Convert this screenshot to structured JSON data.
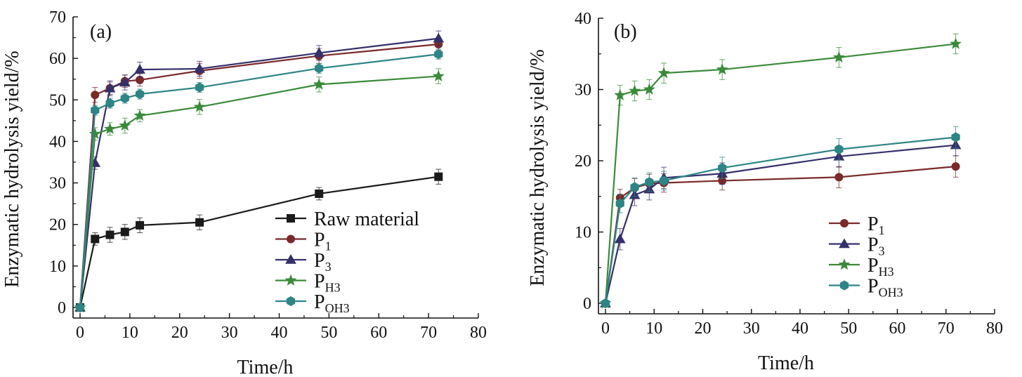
{
  "chart_data": [
    {
      "panel": "(a)",
      "type": "line",
      "xlabel": "Time/h",
      "ylabel": "Enzymatic hydrolysis yield/%",
      "xlim": [
        0,
        80
      ],
      "ylim": [
        0,
        70
      ],
      "xticks": [
        0,
        10,
        20,
        30,
        40,
        50,
        60,
        70,
        80
      ],
      "yticks": [
        0,
        10,
        20,
        30,
        40,
        50,
        60,
        70
      ],
      "grid": false,
      "legend_position": "bottom-right",
      "series": [
        {
          "name": "Raw material",
          "label_main": "Raw material",
          "label_sub": "",
          "marker": "square",
          "color": "#1a1a1a",
          "x": [
            0,
            3,
            6,
            9,
            12,
            24,
            48,
            72
          ],
          "y": [
            0,
            16.5,
            17.5,
            18.2,
            19.8,
            20.5,
            27.4,
            31.5
          ],
          "err": [
            0,
            1.5,
            1.8,
            1.8,
            1.8,
            1.8,
            1.5,
            1.8
          ]
        },
        {
          "name": "P1",
          "label_main": "P",
          "label_sub": "1",
          "marker": "circle",
          "color": "#7a2a2a",
          "x": [
            0,
            3,
            6,
            9,
            12,
            24,
            48,
            72
          ],
          "y": [
            0,
            51.2,
            52.8,
            54.5,
            54.8,
            57.0,
            60.6,
            63.4
          ],
          "err": [
            0,
            1.8,
            1.5,
            1.5,
            1.5,
            1.8,
            1.8,
            1.5
          ]
        },
        {
          "name": "P3",
          "label_main": "P",
          "label_sub": "3",
          "marker": "triangle",
          "color": "#34306a",
          "x": [
            0,
            3,
            6,
            9,
            12,
            24,
            48,
            72
          ],
          "y": [
            0,
            34.8,
            52.8,
            54.2,
            57.3,
            57.5,
            61.3,
            64.8
          ],
          "err": [
            0,
            1.5,
            1.8,
            1.8,
            1.8,
            1.8,
            1.8,
            1.8
          ]
        },
        {
          "name": "PH3",
          "label_main": "P",
          "label_sub": "H3",
          "marker": "star",
          "color": "#3a8a3a",
          "x": [
            0,
            3,
            6,
            9,
            12,
            24,
            48,
            72
          ],
          "y": [
            0,
            41.8,
            43.0,
            43.8,
            46.2,
            48.3,
            53.7,
            55.7
          ],
          "err": [
            0,
            1.5,
            1.5,
            1.8,
            1.5,
            1.8,
            1.8,
            1.8
          ]
        },
        {
          "name": "POH3",
          "label_main": "P",
          "label_sub": "OH3",
          "marker": "hexagon",
          "color": "#2e8585",
          "x": [
            0,
            3,
            6,
            9,
            12,
            24,
            48,
            72
          ],
          "y": [
            0,
            47.5,
            49.2,
            50.4,
            51.4,
            53.0,
            57.6,
            61.0
          ],
          "err": [
            0,
            1.2,
            1.2,
            1.2,
            1.2,
            1.2,
            1.2,
            1.2
          ]
        }
      ]
    },
    {
      "panel": "(b)",
      "type": "line",
      "xlabel": "Time/h",
      "ylabel": "Enzymatic hydrolysis yield/%",
      "xlim": [
        0,
        80
      ],
      "ylim": [
        0,
        40
      ],
      "xticks": [
        0,
        10,
        20,
        30,
        40,
        50,
        60,
        70,
        80
      ],
      "yticks": [
        0,
        10,
        20,
        30,
        40
      ],
      "grid": false,
      "legend_position": "bottom-right",
      "series": [
        {
          "name": "P1",
          "label_main": "P",
          "label_sub": "1",
          "marker": "circle",
          "color": "#7a2a2a",
          "x": [
            0,
            3,
            6,
            9,
            12,
            24,
            48,
            72
          ],
          "y": [
            0,
            14.8,
            16.2,
            16.8,
            16.9,
            17.2,
            17.7,
            19.2
          ],
          "err": [
            0,
            1.2,
            1.3,
            1.3,
            1.3,
            1.3,
            1.5,
            1.5
          ]
        },
        {
          "name": "P3",
          "label_main": "P",
          "label_sub": "3",
          "marker": "triangle",
          "color": "#34306a",
          "x": [
            0,
            3,
            6,
            9,
            12,
            24,
            48,
            72
          ],
          "y": [
            0,
            9.0,
            15.2,
            16.0,
            17.6,
            18.2,
            20.6,
            22.2
          ],
          "err": [
            0,
            1.5,
            1.5,
            1.5,
            1.5,
            1.5,
            1.5,
            1.5
          ]
        },
        {
          "name": "PH3",
          "label_main": "P",
          "label_sub": "H3",
          "marker": "star",
          "color": "#3a8a3a",
          "x": [
            0,
            3,
            6,
            9,
            12,
            24,
            48,
            72
          ],
          "y": [
            0,
            29.2,
            29.8,
            30.0,
            32.3,
            32.8,
            34.5,
            36.4
          ],
          "err": [
            0,
            1.4,
            1.4,
            1.4,
            1.4,
            1.4,
            1.4,
            1.4
          ]
        },
        {
          "name": "POH3",
          "label_main": "P",
          "label_sub": "OH3",
          "marker": "hexagon",
          "color": "#2e8585",
          "x": [
            0,
            3,
            6,
            9,
            12,
            24,
            48,
            72
          ],
          "y": [
            0,
            14.0,
            16.3,
            17.0,
            17.2,
            19.0,
            21.6,
            23.3
          ],
          "err": [
            0,
            1.3,
            1.3,
            1.3,
            1.3,
            1.5,
            1.5,
            1.5
          ]
        }
      ]
    }
  ]
}
